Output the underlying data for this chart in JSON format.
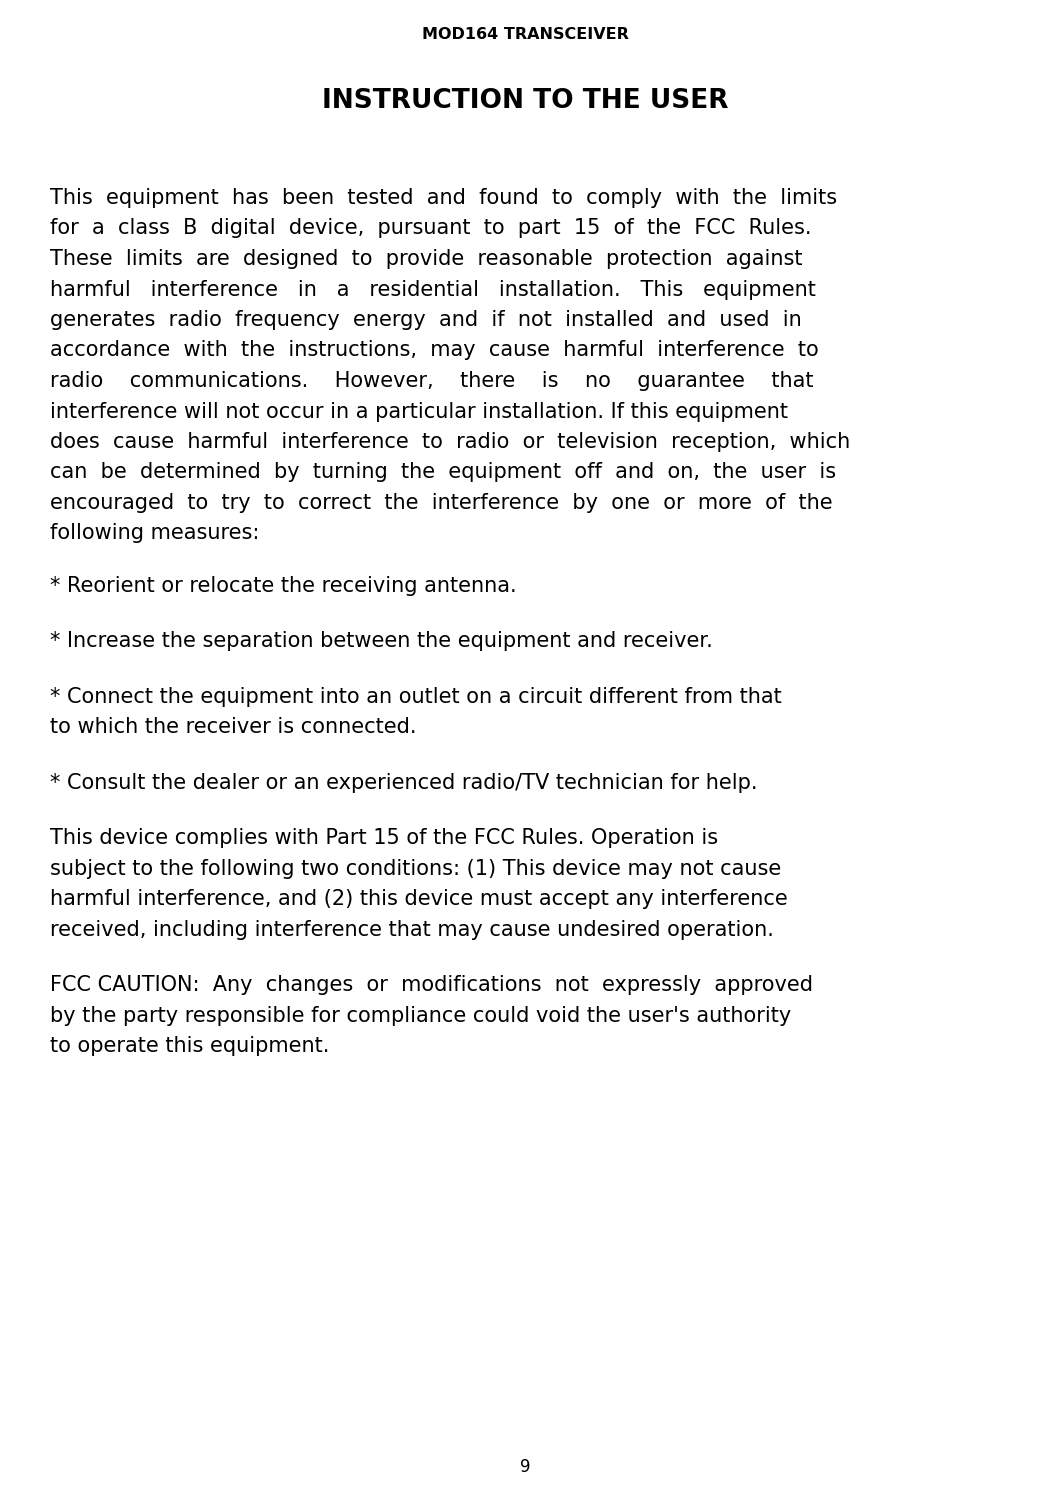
{
  "background_color": "#ffffff",
  "page_number": "9",
  "header": "MOD164 TRANSCEIVER",
  "title": "INSTRUCTION TO THE USER",
  "paragraph1": "This equipment has been tested and found to comply with the limits for a class B digital device, pursuant to part 15 of the FCC Rules. These limits are designed to provide reasonable protection against harmful interference in a residential installation. This equipment generates radio frequency energy and if not installed and used in accordance with the instructions, may cause harmful interference to radio communications. However, there is no guarantee that interference will not occur in a particular installation. If this equipment does cause harmful interference to radio or television reception, which can be determined by turning the equipment off and on, the user is encouraged to try to correct the interference by one or more of the following measures:",
  "bullet1": "* Reorient or relocate the receiving antenna.",
  "bullet2": "* Increase the separation between the equipment and receiver.",
  "bullet3_line1": "* Connect the equipment into an outlet on a circuit different from that",
  "bullet3_line2": "to which the receiver is connected.",
  "bullet4": "* Consult the dealer or an experienced radio/TV technician for help.",
  "paragraph2_line1": "This device complies with Part 15 of the FCC Rules. Operation is",
  "paragraph2_line2": "subject to the following two conditions: (1) This device may not cause",
  "paragraph2_line3": "harmful interference, and (2) this device must accept any interference",
  "paragraph2_line4": "received, including interference that may cause undesired operation.",
  "paragraph3_line1": "FCC CAUTION:  Any  changes  or  modifications  not  expressly  approved",
  "paragraph3_line2": "by the party responsible for compliance could void the user's authority",
  "paragraph3_line3": "to operate this equipment.",
  "text_color": "#000000",
  "header_fontsize": 11.5,
  "title_fontsize": 19,
  "body_fontsize": 15.0,
  "body_fontsize_small": 14.5,
  "page_num_fontsize": 12
}
